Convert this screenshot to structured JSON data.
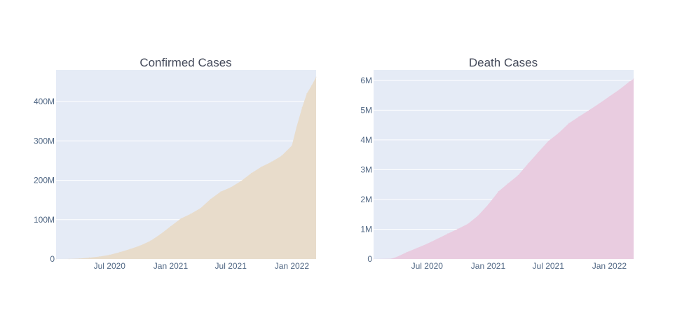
{
  "chart_data": [
    {
      "type": "bar",
      "title": "Confirmed Cases",
      "xlabel": "",
      "ylabel": "",
      "fill_color": "#e8dccb",
      "plot_bg": "#e5ebf6",
      "xlim": [
        "2020-01-22",
        "2022-03-15"
      ],
      "ylim": [
        0,
        480000000
      ],
      "x_ticks": [
        {
          "date": "2020-07-01",
          "label": "Jul 2020"
        },
        {
          "date": "2021-01-01",
          "label": "Jan 2021"
        },
        {
          "date": "2021-07-01",
          "label": "Jul 2021"
        },
        {
          "date": "2022-01-01",
          "label": "Jan 2022"
        }
      ],
      "y_ticks": [
        {
          "value": 0,
          "label": "0"
        },
        {
          "value": 100000000,
          "label": "100M"
        },
        {
          "value": 200000000,
          "label": "200M"
        },
        {
          "value": 300000000,
          "label": "300M"
        },
        {
          "value": 400000000,
          "label": "400M"
        }
      ],
      "grid": true,
      "points": [
        {
          "x": "2020-01-22",
          "y": 0
        },
        {
          "x": "2020-03-01",
          "y": 100000
        },
        {
          "x": "2020-04-01",
          "y": 1000000
        },
        {
          "x": "2020-05-01",
          "y": 3400000
        },
        {
          "x": "2020-06-01",
          "y": 6200000
        },
        {
          "x": "2020-07-01",
          "y": 10500000
        },
        {
          "x": "2020-08-01",
          "y": 17500000
        },
        {
          "x": "2020-09-01",
          "y": 25400000
        },
        {
          "x": "2020-10-01",
          "y": 34000000
        },
        {
          "x": "2020-11-01",
          "y": 46000000
        },
        {
          "x": "2020-12-01",
          "y": 63000000
        },
        {
          "x": "2021-01-01",
          "y": 83000000
        },
        {
          "x": "2021-02-01",
          "y": 103000000
        },
        {
          "x": "2021-03-01",
          "y": 114000000
        },
        {
          "x": "2021-04-01",
          "y": 129000000
        },
        {
          "x": "2021-05-01",
          "y": 152000000
        },
        {
          "x": "2021-06-01",
          "y": 171000000
        },
        {
          "x": "2021-07-01",
          "y": 182000000
        },
        {
          "x": "2021-08-01",
          "y": 198000000
        },
        {
          "x": "2021-09-01",
          "y": 218000000
        },
        {
          "x": "2021-10-01",
          "y": 234000000
        },
        {
          "x": "2021-11-01",
          "y": 247000000
        },
        {
          "x": "2021-12-01",
          "y": 262000000
        },
        {
          "x": "2022-01-01",
          "y": 288000000
        },
        {
          "x": "2022-01-15",
          "y": 335000000
        },
        {
          "x": "2022-02-01",
          "y": 385000000
        },
        {
          "x": "2022-02-15",
          "y": 420000000
        },
        {
          "x": "2022-03-01",
          "y": 440000000
        },
        {
          "x": "2022-03-15",
          "y": 462000000
        }
      ]
    },
    {
      "type": "bar",
      "title": "Death Cases",
      "xlabel": "",
      "ylabel": "",
      "fill_color": "#e9cce0",
      "plot_bg": "#e5ebf6",
      "xlim": [
        "2020-01-22",
        "2022-03-15"
      ],
      "ylim": [
        0,
        6350000
      ],
      "x_ticks": [
        {
          "date": "2020-07-01",
          "label": "Jul 2020"
        },
        {
          "date": "2021-01-01",
          "label": "Jan 2021"
        },
        {
          "date": "2021-07-01",
          "label": "Jul 2021"
        },
        {
          "date": "2022-01-01",
          "label": "Jan 2022"
        }
      ],
      "y_ticks": [
        {
          "value": 0,
          "label": "0"
        },
        {
          "value": 1000000,
          "label": "1M"
        },
        {
          "value": 2000000,
          "label": "2M"
        },
        {
          "value": 3000000,
          "label": "3M"
        },
        {
          "value": 4000000,
          "label": "4M"
        },
        {
          "value": 5000000,
          "label": "5M"
        },
        {
          "value": 6000000,
          "label": "6M"
        }
      ],
      "grid": true,
      "points": [
        {
          "x": "2020-01-22",
          "y": 0
        },
        {
          "x": "2020-03-15",
          "y": 10000
        },
        {
          "x": "2020-04-01",
          "y": 70000
        },
        {
          "x": "2020-05-01",
          "y": 230000
        },
        {
          "x": "2020-06-01",
          "y": 370000
        },
        {
          "x": "2020-07-01",
          "y": 510000
        },
        {
          "x": "2020-08-01",
          "y": 680000
        },
        {
          "x": "2020-09-01",
          "y": 850000
        },
        {
          "x": "2020-10-01",
          "y": 1010000
        },
        {
          "x": "2020-11-01",
          "y": 1180000
        },
        {
          "x": "2020-12-01",
          "y": 1450000
        },
        {
          "x": "2021-01-01",
          "y": 1830000
        },
        {
          "x": "2021-02-01",
          "y": 2270000
        },
        {
          "x": "2021-03-01",
          "y": 2530000
        },
        {
          "x": "2021-04-01",
          "y": 2810000
        },
        {
          "x": "2021-05-01",
          "y": 3200000
        },
        {
          "x": "2021-06-01",
          "y": 3590000
        },
        {
          "x": "2021-07-01",
          "y": 3960000
        },
        {
          "x": "2021-08-01",
          "y": 4230000
        },
        {
          "x": "2021-09-01",
          "y": 4560000
        },
        {
          "x": "2021-10-01",
          "y": 4780000
        },
        {
          "x": "2021-11-01",
          "y": 5000000
        },
        {
          "x": "2021-12-01",
          "y": 5220000
        },
        {
          "x": "2022-01-01",
          "y": 5460000
        },
        {
          "x": "2022-02-01",
          "y": 5700000
        },
        {
          "x": "2022-03-01",
          "y": 5950000
        },
        {
          "x": "2022-03-15",
          "y": 6050000
        }
      ]
    }
  ]
}
